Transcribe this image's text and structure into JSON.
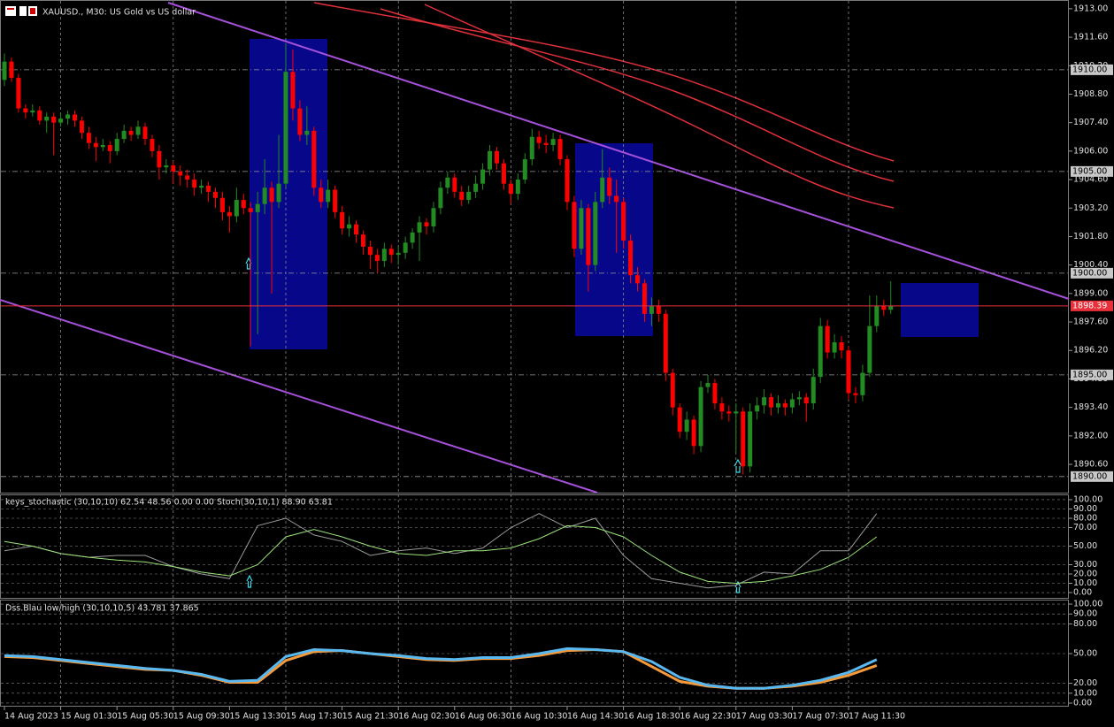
{
  "chart_data": [
    {
      "type": "candlestick",
      "title": "XAUUSD., M30:  US Gold vs US dollar",
      "up_color": "#228b22",
      "down_color": "#ff0000",
      "ylim": [
        1889.21,
        1913.43
      ],
      "yticks": [
        {
          "value": 1913.0,
          "label": "1913.00"
        },
        {
          "value": 1911.6,
          "label": "1911.60"
        },
        {
          "value": 1910.2,
          "label": "1910.20"
        },
        {
          "value": 1908.8,
          "label": "1908.80"
        },
        {
          "value": 1907.4,
          "label": "1907.40"
        },
        {
          "value": 1906.0,
          "label": "1906.00"
        },
        {
          "value": 1904.6,
          "label": "1904.60"
        },
        {
          "value": 1903.2,
          "label": "1903.20"
        },
        {
          "value": 1901.8,
          "label": "1901.80"
        },
        {
          "value": 1900.4,
          "label": "1900.40"
        },
        {
          "value": 1899.0,
          "label": "1899.00"
        },
        {
          "value": 1897.6,
          "label": "1897.60"
        },
        {
          "value": 1896.2,
          "label": "1896.20"
        },
        {
          "value": 1894.8,
          "label": "1894.80"
        },
        {
          "value": 1893.4,
          "label": "1893.40"
        },
        {
          "value": 1892.0,
          "label": "1892.00"
        },
        {
          "value": 1890.6,
          "label": "1890.60"
        }
      ],
      "levels": [
        {
          "value": 1910,
          "label": "1910.00"
        },
        {
          "value": 1905,
          "label": "1905.00"
        },
        {
          "value": 1900,
          "label": "1900.00"
        },
        {
          "value": 1895,
          "label": "1895.00"
        },
        {
          "value": 1890,
          "label": "1890.00"
        }
      ],
      "current_price": {
        "value": 1898.39,
        "label": "1898.39",
        "color": "#e8303a"
      },
      "xticks": [
        {
          "value": 0,
          "label": "14 Aug 2023"
        },
        {
          "value": 8,
          "label": "15 Aug 01:30"
        },
        {
          "value": 16,
          "label": "15 Aug 05:30"
        },
        {
          "value": 24,
          "label": "15 Aug 09:30"
        },
        {
          "value": 32,
          "label": "15 Aug 13:30"
        },
        {
          "value": 40,
          "label": "15 Aug 17:30"
        },
        {
          "value": 48,
          "label": "15 Aug 21:30"
        },
        {
          "value": 56,
          "label": "16 Aug 02:30"
        },
        {
          "value": 64,
          "label": "16 Aug 06:30"
        },
        {
          "value": 72,
          "label": "16 Aug 10:30"
        },
        {
          "value": 80,
          "label": "16 Aug 14:30"
        },
        {
          "value": 88,
          "label": "16 Aug 18:30"
        },
        {
          "value": 96,
          "label": "16 Aug 22:30"
        },
        {
          "value": 104,
          "label": "17 Aug 03:30"
        },
        {
          "value": 112,
          "label": "17 Aug 07:30"
        },
        {
          "value": 120,
          "label": "17 Aug 11:30"
        }
      ],
      "ohlc": [
        [
          1909.5,
          1910.8,
          1909.2,
          1910.4
        ],
        [
          1910.4,
          1910.6,
          1909.4,
          1909.6
        ],
        [
          1909.6,
          1909.8,
          1907.9,
          1908.1
        ],
        [
          1908.1,
          1908.3,
          1907.6,
          1907.9
        ],
        [
          1907.9,
          1908.3,
          1907.7,
          1908.0
        ],
        [
          1908.0,
          1908.2,
          1907.3,
          1907.5
        ],
        [
          1907.5,
          1907.9,
          1906.9,
          1907.7
        ],
        [
          1907.7,
          1907.9,
          1905.8,
          1907.4
        ],
        [
          1907.4,
          1907.9,
          1907.2,
          1907.6
        ],
        [
          1907.6,
          1908.0,
          1907.3,
          1907.8
        ],
        [
          1907.8,
          1908.0,
          1907.2,
          1907.5
        ],
        [
          1907.5,
          1907.7,
          1906.6,
          1906.9
        ],
        [
          1906.9,
          1907.2,
          1906.1,
          1906.4
        ],
        [
          1906.4,
          1906.7,
          1905.5,
          1906.2
        ],
        [
          1906.2,
          1906.6,
          1906.0,
          1906.3
        ],
        [
          1906.3,
          1906.5,
          1905.4,
          1906.0
        ],
        [
          1906.0,
          1906.9,
          1905.8,
          1906.6
        ],
        [
          1906.6,
          1907.3,
          1906.4,
          1907.0
        ],
        [
          1907.0,
          1907.2,
          1906.5,
          1906.8
        ],
        [
          1906.8,
          1907.5,
          1906.6,
          1907.2
        ],
        [
          1907.2,
          1907.4,
          1906.3,
          1906.6
        ],
        [
          1906.6,
          1906.8,
          1905.7,
          1906.0
        ],
        [
          1906.0,
          1906.3,
          1904.6,
          1905.2
        ],
        [
          1905.2,
          1905.6,
          1904.9,
          1905.3
        ],
        [
          1905.3,
          1905.5,
          1904.4,
          1905.0
        ],
        [
          1905.0,
          1905.3,
          1904.3,
          1904.8
        ],
        [
          1904.8,
          1905.1,
          1904.2,
          1904.6
        ],
        [
          1904.6,
          1904.9,
          1903.8,
          1904.2
        ],
        [
          1904.2,
          1904.6,
          1903.9,
          1904.3
        ],
        [
          1904.3,
          1904.5,
          1903.5,
          1904.0
        ],
        [
          1904.0,
          1904.2,
          1903.2,
          1903.7
        ],
        [
          1903.7,
          1904.0,
          1902.6,
          1903.0
        ],
        [
          1903.0,
          1903.3,
          1902.0,
          1902.8
        ],
        [
          1902.8,
          1904.2,
          1902.5,
          1903.6
        ],
        [
          1903.6,
          1903.9,
          1902.9,
          1903.2
        ],
        [
          1903.2,
          1903.5,
          1896.4,
          1903.0
        ],
        [
          1903.0,
          1904.0,
          1897.0,
          1903.4
        ],
        [
          1903.4,
          1905.6,
          1902.9,
          1904.2
        ],
        [
          1904.2,
          1904.5,
          1899.0,
          1903.5
        ],
        [
          1903.5,
          1906.8,
          1903.2,
          1904.4
        ],
        [
          1904.4,
          1911.3,
          1904.2,
          1909.9
        ],
        [
          1909.9,
          1911.0,
          1907.5,
          1908.1
        ],
        [
          1908.1,
          1908.5,
          1906.5,
          1906.8
        ],
        [
          1906.8,
          1908.2,
          1906.3,
          1907.0
        ],
        [
          1907.0,
          1907.2,
          1903.8,
          1904.2
        ],
        [
          1904.2,
          1904.6,
          1903.2,
          1903.5
        ],
        [
          1903.5,
          1904.6,
          1903.2,
          1904.1
        ],
        [
          1904.1,
          1904.3,
          1902.7,
          1903.0
        ],
        [
          1903.0,
          1903.3,
          1901.9,
          1902.2
        ],
        [
          1902.2,
          1902.8,
          1901.8,
          1902.4
        ],
        [
          1902.4,
          1902.6,
          1901.5,
          1901.9
        ],
        [
          1901.9,
          1902.1,
          1900.9,
          1901.3
        ],
        [
          1901.3,
          1901.6,
          1900.2,
          1900.9
        ],
        [
          1900.9,
          1901.2,
          1900.0,
          1900.6
        ],
        [
          1900.6,
          1901.5,
          1900.3,
          1901.2
        ],
        [
          1901.2,
          1901.4,
          1900.5,
          1900.9
        ],
        [
          1900.9,
          1901.3,
          1900.4,
          1901.0
        ],
        [
          1901.0,
          1901.8,
          1900.7,
          1901.5
        ],
        [
          1901.5,
          1902.2,
          1901.2,
          1902.0
        ],
        [
          1902.0,
          1902.8,
          1900.6,
          1902.5
        ],
        [
          1902.5,
          1902.7,
          1901.9,
          1902.3
        ],
        [
          1902.3,
          1903.5,
          1902.0,
          1903.2
        ],
        [
          1903.2,
          1904.5,
          1902.9,
          1904.2
        ],
        [
          1904.2,
          1905.0,
          1903.9,
          1904.7
        ],
        [
          1904.7,
          1904.9,
          1903.7,
          1904.0
        ],
        [
          1904.0,
          1904.3,
          1903.3,
          1903.6
        ],
        [
          1903.6,
          1904.3,
          1903.4,
          1904.0
        ],
        [
          1904.0,
          1904.8,
          1903.7,
          1904.4
        ],
        [
          1904.4,
          1905.4,
          1904.1,
          1905.1
        ],
        [
          1905.1,
          1906.3,
          1904.8,
          1906.0
        ],
        [
          1906.0,
          1906.2,
          1905.1,
          1905.4
        ],
        [
          1905.4,
          1905.6,
          1904.1,
          1904.4
        ],
        [
          1904.4,
          1904.6,
          1903.4,
          1903.9
        ],
        [
          1903.9,
          1904.9,
          1903.6,
          1904.6
        ],
        [
          1904.6,
          1905.9,
          1904.4,
          1905.6
        ],
        [
          1905.6,
          1907.1,
          1905.3,
          1906.7
        ],
        [
          1906.7,
          1907.0,
          1906.1,
          1906.4
        ],
        [
          1906.4,
          1906.8,
          1905.9,
          1906.3
        ],
        [
          1906.3,
          1906.9,
          1906.0,
          1906.6
        ],
        [
          1906.6,
          1906.8,
          1905.3,
          1905.6
        ],
        [
          1905.6,
          1905.8,
          1903.1,
          1903.5
        ],
        [
          1903.5,
          1903.8,
          1900.8,
          1901.2
        ],
        [
          1901.2,
          1903.6,
          1900.9,
          1903.2
        ],
        [
          1903.2,
          1903.4,
          1899.1,
          1900.4
        ],
        [
          1900.4,
          1904.0,
          1900.1,
          1903.5
        ],
        [
          1903.5,
          1906.1,
          1903.2,
          1904.7
        ],
        [
          1904.7,
          1905.2,
          1903.4,
          1903.8
        ],
        [
          1903.8,
          1904.6,
          1901.0,
          1903.5
        ],
        [
          1903.5,
          1903.7,
          1901.2,
          1901.6
        ],
        [
          1901.6,
          1901.9,
          1899.5,
          1899.9
        ],
        [
          1899.9,
          1900.3,
          1899.1,
          1899.5
        ],
        [
          1899.5,
          1899.7,
          1897.6,
          1898.0
        ],
        [
          1898.0,
          1898.8,
          1897.4,
          1898.4
        ],
        [
          1898.4,
          1898.7,
          1897.6,
          1898.0
        ],
        [
          1898.0,
          1898.2,
          1894.7,
          1895.1
        ],
        [
          1895.1,
          1895.3,
          1893.0,
          1893.4
        ],
        [
          1893.4,
          1893.6,
          1891.9,
          1892.2
        ],
        [
          1892.2,
          1893.2,
          1891.8,
          1892.8
        ],
        [
          1892.8,
          1893.0,
          1891.1,
          1891.5
        ],
        [
          1891.5,
          1894.7,
          1891.2,
          1894.4
        ],
        [
          1894.4,
          1895.0,
          1894.1,
          1894.6
        ],
        [
          1894.6,
          1894.8,
          1893.3,
          1893.6
        ],
        [
          1893.6,
          1893.9,
          1892.8,
          1893.2
        ],
        [
          1893.2,
          1893.5,
          1892.7,
          1893.1
        ],
        [
          1893.1,
          1893.6,
          1891.2,
          1893.2
        ],
        [
          1893.2,
          1893.4,
          1890.1,
          1890.5
        ],
        [
          1890.5,
          1893.6,
          1890.2,
          1893.2
        ],
        [
          1893.2,
          1893.9,
          1892.8,
          1893.5
        ],
        [
          1893.5,
          1894.3,
          1893.1,
          1893.9
        ],
        [
          1893.9,
          1894.1,
          1893.0,
          1893.4
        ],
        [
          1893.4,
          1894.0,
          1893.1,
          1893.6
        ],
        [
          1893.6,
          1893.8,
          1893.0,
          1893.4
        ],
        [
          1893.4,
          1894.1,
          1893.1,
          1893.8
        ],
        [
          1893.8,
          1894.2,
          1893.5,
          1893.9
        ],
        [
          1893.9,
          1894.1,
          1892.7,
          1893.6
        ],
        [
          1893.6,
          1895.3,
          1893.3,
          1894.9
        ],
        [
          1894.9,
          1897.8,
          1894.6,
          1897.4
        ],
        [
          1897.4,
          1897.7,
          1895.8,
          1896.1
        ],
        [
          1896.1,
          1897.0,
          1895.8,
          1896.6
        ],
        [
          1896.6,
          1896.9,
          1895.8,
          1896.2
        ],
        [
          1896.2,
          1896.4,
          1893.8,
          1894.1
        ],
        [
          1894.1,
          1894.4,
          1893.6,
          1894.0
        ],
        [
          1894.0,
          1895.5,
          1893.7,
          1895.1
        ],
        [
          1895.1,
          1898.9,
          1894.9,
          1897.4
        ],
        [
          1897.4,
          1898.9,
          1897.1,
          1898.4
        ],
        [
          1898.4,
          1898.7,
          1897.9,
          1898.2
        ],
        [
          1898.2,
          1899.6,
          1898.0,
          1898.39
        ]
      ]
    },
    {
      "type": "line",
      "title": "keys_stochastic (30,10,10) 62.54 48.56 0.00 0.00 Stoch(30,10,1) 88.90 63.81",
      "ylim": [
        -5.7,
        105.7
      ],
      "yticks": [
        {
          "value": 100,
          "label": "100.00"
        },
        {
          "value": 90,
          "label": "90.00"
        },
        {
          "value": 80,
          "label": "80.00"
        },
        {
          "value": 70,
          "label": "70.00"
        },
        {
          "value": 50,
          "label": "50.00"
        },
        {
          "value": 30,
          "label": "30.00"
        },
        {
          "value": 20,
          "label": "20.00"
        },
        {
          "value": 10,
          "label": "10.00"
        },
        {
          "value": 0,
          "label": "0.00"
        }
      ],
      "x": [
        0,
        4,
        8,
        12,
        16,
        20,
        24,
        28,
        32,
        36,
        40,
        44,
        48,
        52,
        56,
        60,
        64,
        68,
        72,
        76,
        80,
        84,
        88,
        92,
        96,
        100,
        104,
        108,
        112,
        116,
        120,
        124
      ],
      "series": [
        {
          "color": "#9a9a9a",
          "values": [
            45,
            50,
            42,
            38,
            40,
            40,
            28,
            20,
            15,
            72,
            80,
            62,
            55,
            40,
            45,
            48,
            42,
            48,
            70,
            85,
            70,
            80,
            40,
            15,
            10,
            5,
            8,
            22,
            20,
            45,
            45,
            85
          ]
        },
        {
          "color": "#9be37a",
          "values": [
            55,
            50,
            42,
            38,
            35,
            33,
            28,
            22,
            18,
            30,
            60,
            68,
            60,
            50,
            42,
            40,
            45,
            45,
            48,
            58,
            72,
            70,
            60,
            40,
            22,
            12,
            10,
            12,
            18,
            25,
            38,
            60
          ]
        }
      ]
    },
    {
      "type": "line",
      "title": "Dss.Blau low/high (30,10,10,5) 43.781 37.865",
      "ylim": [
        -2.7,
        104.5
      ],
      "yticks": [
        {
          "value": 100,
          "label": "100.00"
        },
        {
          "value": 90,
          "label": "90.00"
        },
        {
          "value": 80,
          "label": "80.00"
        },
        {
          "value": 50,
          "label": "50.00"
        },
        {
          "value": 20,
          "label": "20.00"
        },
        {
          "value": 10,
          "label": "10.00"
        },
        {
          "value": 0,
          "label": "0.00"
        }
      ],
      "x": [
        0,
        4,
        8,
        12,
        16,
        20,
        24,
        28,
        32,
        36,
        40,
        44,
        48,
        52,
        56,
        60,
        64,
        68,
        72,
        76,
        80,
        84,
        88,
        92,
        96,
        100,
        104,
        108,
        112,
        116,
        120,
        124
      ],
      "series": [
        {
          "color": "#f59a3a",
          "values": [
            47,
            46,
            43,
            40,
            37,
            34,
            33,
            28,
            21,
            21,
            43,
            52,
            53,
            50,
            47,
            44,
            43,
            45,
            45,
            48,
            53,
            54,
            52,
            37,
            22,
            17,
            15,
            15,
            17,
            21,
            28,
            38
          ]
        },
        {
          "color": "#5ab8f0",
          "values": [
            48,
            47,
            44,
            41,
            38,
            35,
            33,
            29,
            22,
            23,
            47,
            54,
            53,
            50,
            48,
            45,
            44,
            46,
            46,
            50,
            55,
            54,
            52,
            42,
            26,
            18,
            15,
            15,
            18,
            23,
            31,
            44
          ]
        }
      ]
    }
  ]
}
